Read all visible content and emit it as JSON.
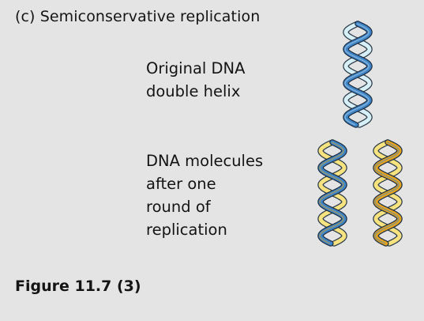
{
  "heading": "(c) Semiconservative replication",
  "labels": {
    "original": [
      "Original DNA",
      "double helix"
    ],
    "after": [
      "DNA molecules",
      "after one",
      "round of",
      "replication"
    ]
  },
  "caption": "Figure 11.7 (3)",
  "colors": {
    "background": "#e4e4e4",
    "old_strand": "#3e86c8",
    "old_strand_light": "#9ccaf0",
    "new_strand": "#e6a41e",
    "new_strand_light": "#f6e27e",
    "pale_strand": "#d7eff6"
  }
}
